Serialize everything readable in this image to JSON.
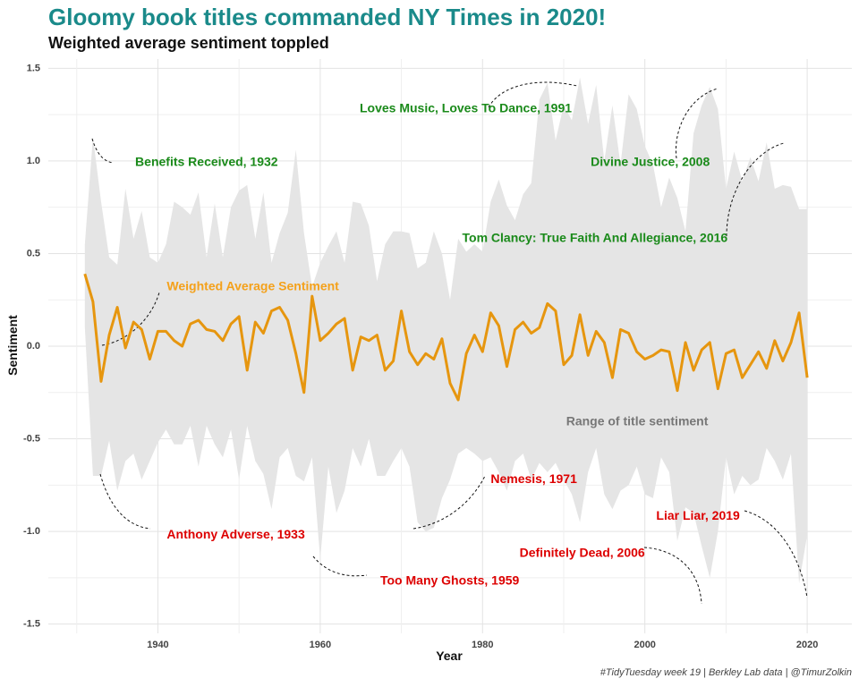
{
  "header": {
    "title": "Gloomy book titles commanded NY Times in 2020!",
    "subtitle": "Weighted average sentiment toppled"
  },
  "caption": "#TidyTuesday week 19 | Berkley Lab data | @TimurZolkin",
  "chart_data": {
    "type": "line",
    "title": "Gloomy book titles commanded NY Times in 2020!",
    "subtitle": "Weighted average sentiment toppled",
    "xlabel": "Year",
    "ylabel": "Sentiment",
    "xlim": [
      1926.5,
      2025.5
    ],
    "ylim": [
      -1.55,
      1.55
    ],
    "x_ticks": [
      1940,
      1960,
      1980,
      2000,
      2020
    ],
    "y_ticks": [
      -1.5,
      -1.0,
      -0.5,
      0.0,
      0.5,
      1.0,
      1.5
    ],
    "y_tick_labels": [
      "-1.5",
      "-1.0",
      "-0.5",
      "0.0",
      "0.5",
      "1.0",
      "1.5"
    ],
    "grid": true,
    "colors": {
      "line": "#e6960f",
      "ribbon": "#e5e5e5",
      "positive": "#1a8a1a",
      "negative": "#dd0000",
      "range_label": "#777777",
      "line_label": "#f4a11b"
    },
    "years": [
      1931,
      1932,
      1933,
      1934,
      1935,
      1936,
      1937,
      1938,
      1939,
      1940,
      1941,
      1942,
      1943,
      1944,
      1945,
      1946,
      1947,
      1948,
      1949,
      1950,
      1951,
      1952,
      1953,
      1954,
      1955,
      1956,
      1957,
      1958,
      1959,
      1960,
      1961,
      1962,
      1963,
      1964,
      1965,
      1966,
      1967,
      1968,
      1969,
      1970,
      1971,
      1972,
      1973,
      1974,
      1975,
      1976,
      1977,
      1978,
      1979,
      1980,
      1981,
      1982,
      1983,
      1984,
      1985,
      1986,
      1987,
      1988,
      1989,
      1990,
      1991,
      1992,
      1993,
      1994,
      1995,
      1996,
      1997,
      1998,
      1999,
      2000,
      2001,
      2002,
      2003,
      2004,
      2005,
      2006,
      2007,
      2008,
      2009,
      2010,
      2011,
      2012,
      2013,
      2014,
      2015,
      2016,
      2017,
      2018,
      2019,
      2020
    ],
    "series": [
      {
        "name": "Weighted Average Sentiment",
        "values": [
          0.39,
          0.24,
          -0.19,
          0.06,
          0.21,
          -0.01,
          0.13,
          0.09,
          -0.07,
          0.08,
          0.08,
          0.03,
          0.0,
          0.12,
          0.14,
          0.09,
          0.08,
          0.03,
          0.12,
          0.16,
          -0.13,
          0.13,
          0.07,
          0.19,
          0.21,
          0.14,
          -0.04,
          -0.25,
          0.27,
          0.03,
          0.07,
          0.12,
          0.15,
          -0.13,
          0.05,
          0.03,
          0.06,
          -0.13,
          -0.08,
          0.19,
          -0.03,
          -0.1,
          -0.04,
          -0.07,
          0.04,
          -0.2,
          -0.29,
          -0.04,
          0.06,
          -0.03,
          0.18,
          0.11,
          -0.11,
          0.09,
          0.13,
          0.07,
          0.1,
          0.23,
          0.19,
          -0.1,
          -0.05,
          0.17,
          -0.05,
          0.08,
          0.02,
          -0.17,
          0.09,
          0.07,
          -0.03,
          -0.07,
          -0.05,
          -0.02,
          -0.03,
          -0.24,
          0.02,
          -0.13,
          -0.02,
          0.02,
          -0.23,
          -0.04,
          -0.02,
          -0.17,
          -0.1,
          -0.03,
          -0.12,
          0.03,
          -0.08,
          0.02,
          0.18,
          -0.17
        ]
      },
      {
        "name": "Range of title sentiment (max)",
        "values": [
          0.55,
          1.13,
          0.78,
          0.48,
          0.44,
          0.85,
          0.58,
          0.73,
          0.48,
          0.45,
          0.55,
          0.78,
          0.75,
          0.71,
          0.83,
          0.48,
          0.77,
          0.48,
          0.75,
          0.84,
          0.87,
          0.58,
          0.83,
          0.45,
          0.61,
          0.72,
          1.06,
          0.61,
          0.32,
          0.45,
          0.54,
          0.62,
          0.45,
          0.78,
          0.77,
          0.65,
          0.35,
          0.55,
          0.62,
          0.62,
          0.61,
          0.42,
          0.45,
          0.62,
          0.5,
          0.25,
          0.58,
          0.51,
          0.55,
          0.51,
          0.78,
          0.9,
          0.76,
          0.68,
          0.82,
          0.88,
          1.33,
          1.42,
          1.11,
          1.3,
          1.22,
          1.45,
          1.2,
          1.41,
          1.0,
          1.3,
          0.98,
          1.36,
          1.28,
          1.08,
          0.98,
          0.75,
          0.91,
          0.8,
          0.62,
          1.15,
          1.3,
          1.4,
          1.28,
          0.85,
          1.05,
          0.89,
          1.02,
          0.89,
          1.1,
          0.85,
          0.87,
          0.86,
          0.74,
          0.74
        ]
      },
      {
        "name": "Range of title sentiment (min)",
        "values": [
          0.1,
          -0.7,
          -0.7,
          -0.51,
          -0.78,
          -0.62,
          -0.58,
          -0.72,
          -0.62,
          -0.52,
          -0.45,
          -0.53,
          -0.53,
          -0.43,
          -0.65,
          -0.43,
          -0.53,
          -0.6,
          -0.45,
          -0.72,
          -0.43,
          -0.62,
          -0.69,
          -0.88,
          -0.6,
          -0.55,
          -0.7,
          -0.73,
          -0.6,
          -1.15,
          -0.65,
          -0.9,
          -0.78,
          -0.55,
          -0.65,
          -0.5,
          -0.7,
          -0.7,
          -0.62,
          -0.55,
          -0.65,
          -0.95,
          -1.0,
          -0.98,
          -0.82,
          -0.72,
          -0.58,
          -0.55,
          -0.58,
          -0.62,
          -0.6,
          -0.68,
          -0.78,
          -0.62,
          -0.58,
          -0.72,
          -0.63,
          -0.68,
          -0.63,
          -0.72,
          -0.8,
          -0.95,
          -0.68,
          -0.55,
          -0.8,
          -0.88,
          -0.78,
          -0.75,
          -0.65,
          -0.8,
          -0.82,
          -0.6,
          -0.68,
          -1.05,
          -0.87,
          -0.9,
          -1.08,
          -1.25,
          -1.0,
          -0.6,
          -0.8,
          -0.7,
          -0.75,
          -0.72,
          -0.55,
          -0.62,
          -0.72,
          -0.58,
          -1.28,
          -1.02
        ]
      }
    ],
    "annotations": [
      {
        "text": "Loves Music, Loves To Dance, 1991",
        "x": 1991,
        "y": 1.28,
        "align": "end",
        "color": "positive"
      },
      {
        "text": "Benefits Received, 1932",
        "x": 1937.2,
        "y": 0.99,
        "align": "start",
        "color": "positive"
      },
      {
        "text": "Divine Justice, 2008",
        "x": 2008,
        "y": 0.99,
        "align": "end",
        "color": "positive"
      },
      {
        "text": "Tom Clancy: True Faith And Allegiance, 2016",
        "x": 2010.2,
        "y": 0.58,
        "align": "end",
        "color": "positive"
      },
      {
        "text": "Weighted Average Sentiment",
        "x": 1941.1,
        "y": 0.32,
        "align": "start",
        "color": "line_label",
        "big": true
      },
      {
        "text": "Range of title sentiment",
        "x": 1990.3,
        "y": -0.41,
        "align": "start",
        "color": "range_label",
        "big": true
      },
      {
        "text": "Nemesis, 1971",
        "x": 1981,
        "y": -0.72,
        "align": "start",
        "color": "negative"
      },
      {
        "text": "Liar Liar, 2019",
        "x": 2011.7,
        "y": -0.92,
        "align": "end",
        "color": "negative"
      },
      {
        "text": "Anthony Adverse, 1933",
        "x": 1941.1,
        "y": -1.02,
        "align": "start",
        "color": "negative"
      },
      {
        "text": "Definitely Dead, 2006",
        "x": 2000,
        "y": -1.12,
        "align": "end",
        "color": "negative"
      },
      {
        "text": "Too Many Ghosts, 1959",
        "x": 1967.4,
        "y": -1.27,
        "align": "start",
        "color": "negative"
      }
    ]
  }
}
